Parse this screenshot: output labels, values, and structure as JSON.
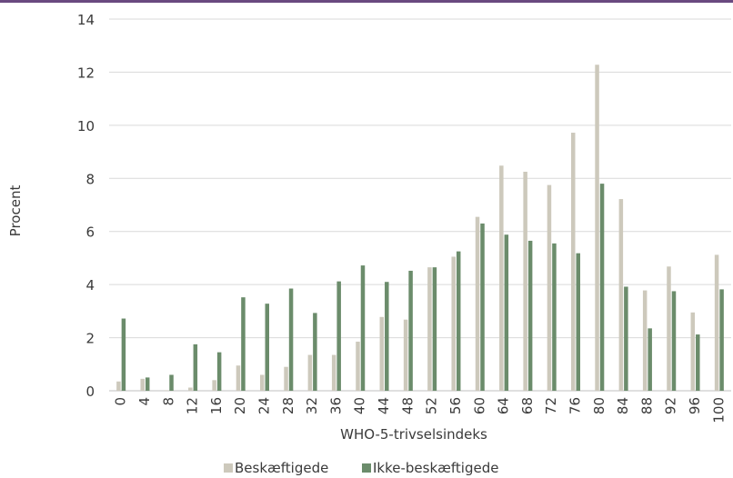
{
  "chart_data": {
    "type": "bar",
    "title": "",
    "xlabel": "WHO-5-trivselsindeks",
    "ylabel": "Procent",
    "ylim": [
      0,
      14
    ],
    "yticks": [
      0,
      2,
      4,
      6,
      8,
      10,
      12,
      14
    ],
    "grid": true,
    "legend_position": "bottom",
    "categories": [
      "0",
      "4",
      "8",
      "12",
      "16",
      "20",
      "24",
      "28",
      "32",
      "36",
      "40",
      "44",
      "48",
      "52",
      "56",
      "60",
      "64",
      "68",
      "72",
      "76",
      "80",
      "84",
      "88",
      "92",
      "96",
      "100"
    ],
    "series": [
      {
        "name": "Beskæftigede",
        "color": "#cdc9bc",
        "values": [
          0.35,
          0.45,
          0.02,
          0.12,
          0.4,
          0.95,
          0.6,
          0.9,
          1.35,
          1.35,
          1.85,
          2.78,
          2.68,
          4.65,
          5.05,
          6.55,
          8.48,
          8.25,
          7.75,
          9.72,
          12.28,
          7.22,
          3.78,
          4.68,
          2.95,
          5.12
        ]
      },
      {
        "name": "Ikke-beskæftigede",
        "color": "#6b8c6b",
        "values": [
          2.72,
          0.5,
          0.6,
          1.75,
          1.45,
          3.52,
          3.28,
          3.85,
          2.93,
          4.12,
          4.72,
          4.1,
          4.52,
          4.65,
          5.25,
          6.3,
          5.88,
          5.65,
          5.55,
          5.18,
          7.8,
          3.92,
          2.35,
          3.75,
          2.12,
          3.82
        ]
      }
    ]
  },
  "colors": {
    "top_bar": "#6a4a80",
    "grid": "#d9d9d9",
    "axis": "#bfbfbf"
  }
}
